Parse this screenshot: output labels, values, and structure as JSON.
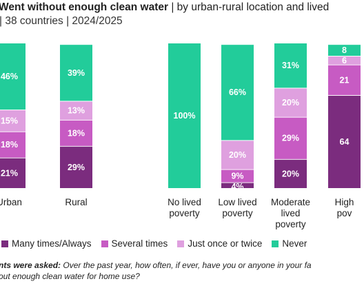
{
  "title": {
    "bold": "Went without enough clean water",
    "rest": " | by urban-rural location and lived"
  },
  "subtitle": "| 38 countries | 2024/2025",
  "legend": [
    {
      "label": "Many times/Always",
      "color": "#7B2C7E"
    },
    {
      "label": "Several times",
      "color": "#C75BC3"
    },
    {
      "label": "Just once or twice",
      "color": "#DFA0DF"
    },
    {
      "label": "Never",
      "color": "#22CC9A"
    }
  ],
  "footnote": {
    "lead": "nts were asked:",
    "text": " Over the past year, how often, if ever, have you or anyone in your fa",
    "line2": "out enough clean water for home use?"
  },
  "chart_data": {
    "type": "bar",
    "stacked": true,
    "ylim": [
      0,
      100
    ],
    "categories": [
      [
        "Urban"
      ],
      [
        "Rural"
      ],
      [
        "No lived",
        "poverty"
      ],
      [
        "Low lived",
        "poverty"
      ],
      [
        "Moderate",
        "lived",
        "poverty"
      ],
      [
        "High",
        "pov"
      ]
    ],
    "series": [
      {
        "name": "Many times/Always",
        "values": [
          21,
          29,
          0,
          4,
          20,
          64
        ],
        "labels": [
          "21%",
          "29%",
          "",
          "4%",
          "20%",
          "64"
        ]
      },
      {
        "name": "Several times",
        "values": [
          18,
          18,
          0,
          9,
          29,
          21
        ],
        "labels": [
          "18%",
          "18%",
          "",
          "9%",
          "29%",
          "21"
        ]
      },
      {
        "name": "Just once or twice",
        "values": [
          15,
          13,
          0,
          20,
          20,
          6
        ],
        "labels": [
          "15%",
          "13%",
          "",
          "20%",
          "20%",
          "6"
        ]
      },
      {
        "name": "Never",
        "values": [
          46,
          39,
          100,
          66,
          31,
          8
        ],
        "labels": [
          "46%",
          "39%",
          "100%",
          "66%",
          "31%",
          "8"
        ]
      }
    ]
  }
}
